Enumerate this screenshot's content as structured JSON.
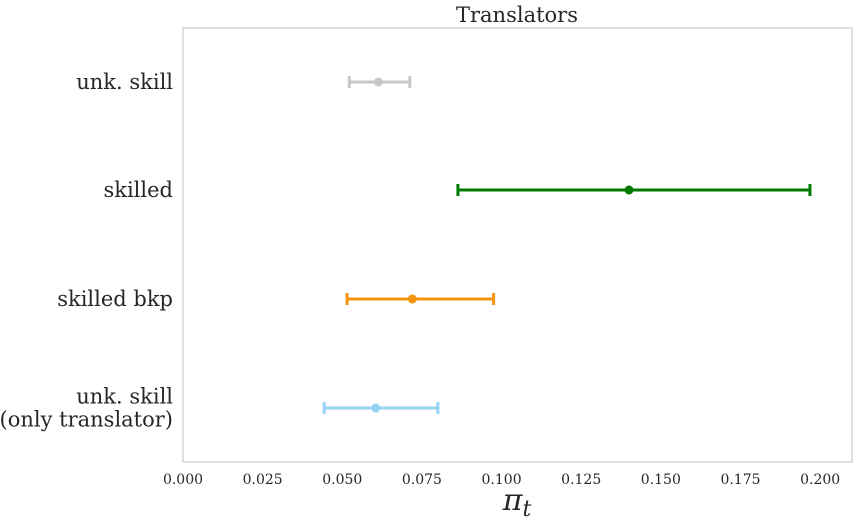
{
  "chart_data": {
    "type": "errorbar",
    "title": "Translators",
    "xlabel_main": "π",
    "xlabel_sub": "t",
    "xlim": [
      0.0,
      0.21
    ],
    "xticks": [
      "0.000",
      "0.025",
      "0.050",
      "0.075",
      "0.100",
      "0.125",
      "0.150",
      "0.175",
      "0.200"
    ],
    "grid": false,
    "series": [
      {
        "label_lines": [
          "unk. skill"
        ],
        "center": 0.0613,
        "low": 0.0522,
        "high": 0.0712,
        "color": "#c8c8c8"
      },
      {
        "label_lines": [
          "skilled"
        ],
        "center": 0.14,
        "low": 0.0863,
        "high": 0.1968,
        "color": "#007b00"
      },
      {
        "label_lines": [
          "skilled bkp"
        ],
        "center": 0.072,
        "low": 0.0515,
        "high": 0.0975,
        "color": "#f5950f"
      },
      {
        "label_lines": [
          "unk. skill",
          "(only translator)"
        ],
        "center": 0.0605,
        "low": 0.0443,
        "high": 0.08,
        "color": "#94d2f6"
      }
    ]
  }
}
